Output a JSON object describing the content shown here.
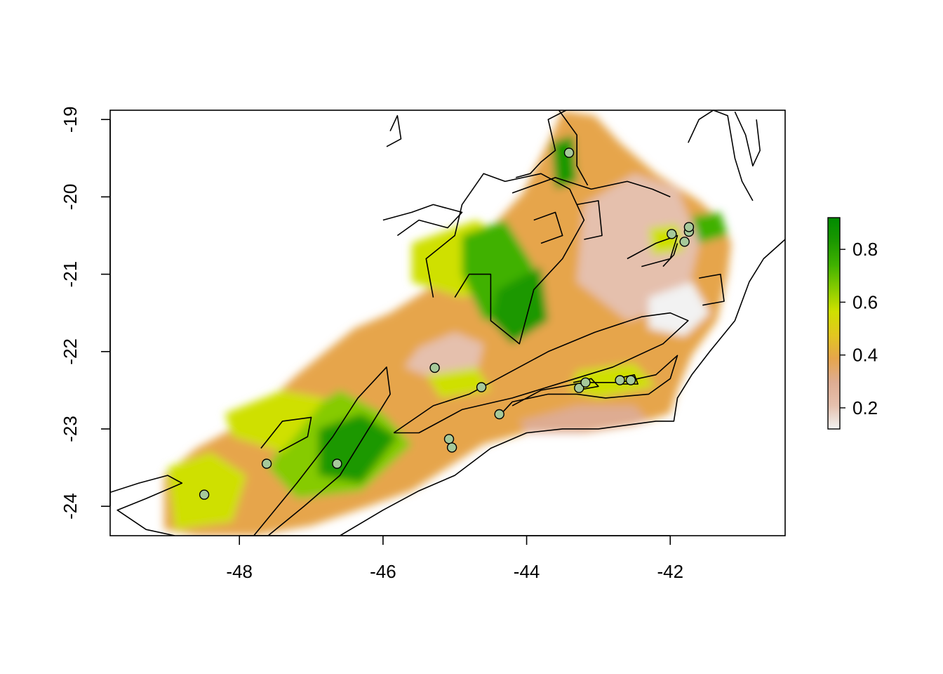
{
  "chart_data": {
    "type": "heatmap",
    "title": "",
    "xlabel": "",
    "ylabel": "",
    "xlim": [
      -49.8,
      -40.4
    ],
    "ylim": [
      -24.38,
      -18.88
    ],
    "x_ticks": [
      "-48",
      "-46",
      "-44",
      "-42"
    ],
    "y_ticks": [
      "-19",
      "-20",
      "-21",
      "-22",
      "-23",
      "-24"
    ],
    "legend": {
      "ticks": [
        "0.2",
        "0.4",
        "0.6",
        "0.8"
      ],
      "range": [
        0.12,
        0.92
      ],
      "placement": "right",
      "colors": [
        "#f2f2f2",
        "#e5c0ad",
        "#deac92",
        "#e6a54c",
        "#e2c620",
        "#cfe000",
        "#86cb00",
        "#3fb100",
        "#1b9800",
        "#008c00"
      ]
    },
    "occurrences": [
      {
        "lon": -43.41,
        "lat": -19.43
      },
      {
        "lon": -41.98,
        "lat": -20.48
      },
      {
        "lon": -41.8,
        "lat": -20.58
      },
      {
        "lon": -41.74,
        "lat": -20.45
      },
      {
        "lon": -41.74,
        "lat": -20.39
      },
      {
        "lon": -45.28,
        "lat": -22.21
      },
      {
        "lon": -44.63,
        "lat": -22.46
      },
      {
        "lon": -44.38,
        "lat": -22.81
      },
      {
        "lon": -43.27,
        "lat": -22.47
      },
      {
        "lon": -43.18,
        "lat": -22.4
      },
      {
        "lon": -42.7,
        "lat": -22.37
      },
      {
        "lon": -42.55,
        "lat": -22.37
      },
      {
        "lon": -45.08,
        "lat": -23.13
      },
      {
        "lon": -45.04,
        "lat": -23.24
      },
      {
        "lon": -47.62,
        "lat": -23.45
      },
      {
        "lon": -46.64,
        "lat": -23.45
      },
      {
        "lon": -48.49,
        "lat": -23.85
      }
    ],
    "point_color": "#a6c99a",
    "frame_color": "#000000"
  }
}
